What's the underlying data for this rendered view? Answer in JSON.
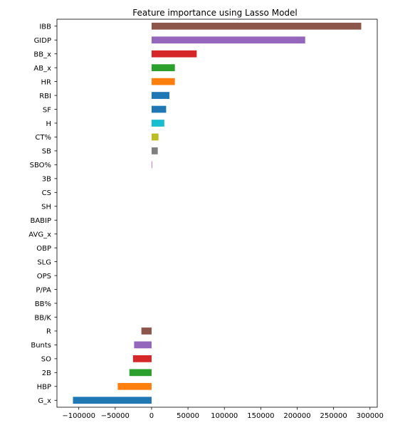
{
  "chart_data": {
    "type": "bar",
    "orientation": "horizontal",
    "title": "Feature importance using Lasso Model",
    "xlabel": "",
    "ylabel": "",
    "xlim": [
      -130000,
      310000
    ],
    "x_ticks": [
      -100000,
      -50000,
      0,
      50000,
      100000,
      150000,
      200000,
      250000,
      300000
    ],
    "grid": false,
    "categories": [
      "IBB",
      "GIDP",
      "BB_x",
      "AB_x",
      "HR",
      "RBI",
      "SF",
      "H",
      "CT%",
      "SB",
      "SBO%",
      "3B",
      "CS",
      "SH",
      "BABIP",
      "AVG_x",
      "OBP",
      "SLG",
      "OPS",
      "P/PA",
      "BB%",
      "BB/K",
      "R",
      "Bunts",
      "SO",
      "2B",
      "HBP",
      "G_x"
    ],
    "values": [
      288000,
      211000,
      62000,
      32000,
      32000,
      24500,
      20000,
      17500,
      9500,
      8500,
      300,
      0,
      0,
      0,
      0,
      0,
      0,
      0,
      0,
      0,
      0,
      0,
      -14000,
      -24000,
      -25500,
      -30500,
      -46500,
      -108000
    ],
    "colors": [
      "#8c564b",
      "#9467bd",
      "#d62728",
      "#2ca02c",
      "#ff7f0e",
      "#1f77b4",
      "#1f77b4",
      "#17becf",
      "#bcbd22",
      "#7f7f7f",
      "#e377c2",
      "#8c564b",
      "#9467bd",
      "#d62728",
      "#2ca02c",
      "#ff7f0e",
      "#1f77b4",
      "#17becf",
      "#bcbd22",
      "#7f7f7f",
      "#e377c2",
      "#8c564b",
      "#8c564b",
      "#9467bd",
      "#d62728",
      "#2ca02c",
      "#ff7f0e",
      "#1f77b4"
    ]
  }
}
